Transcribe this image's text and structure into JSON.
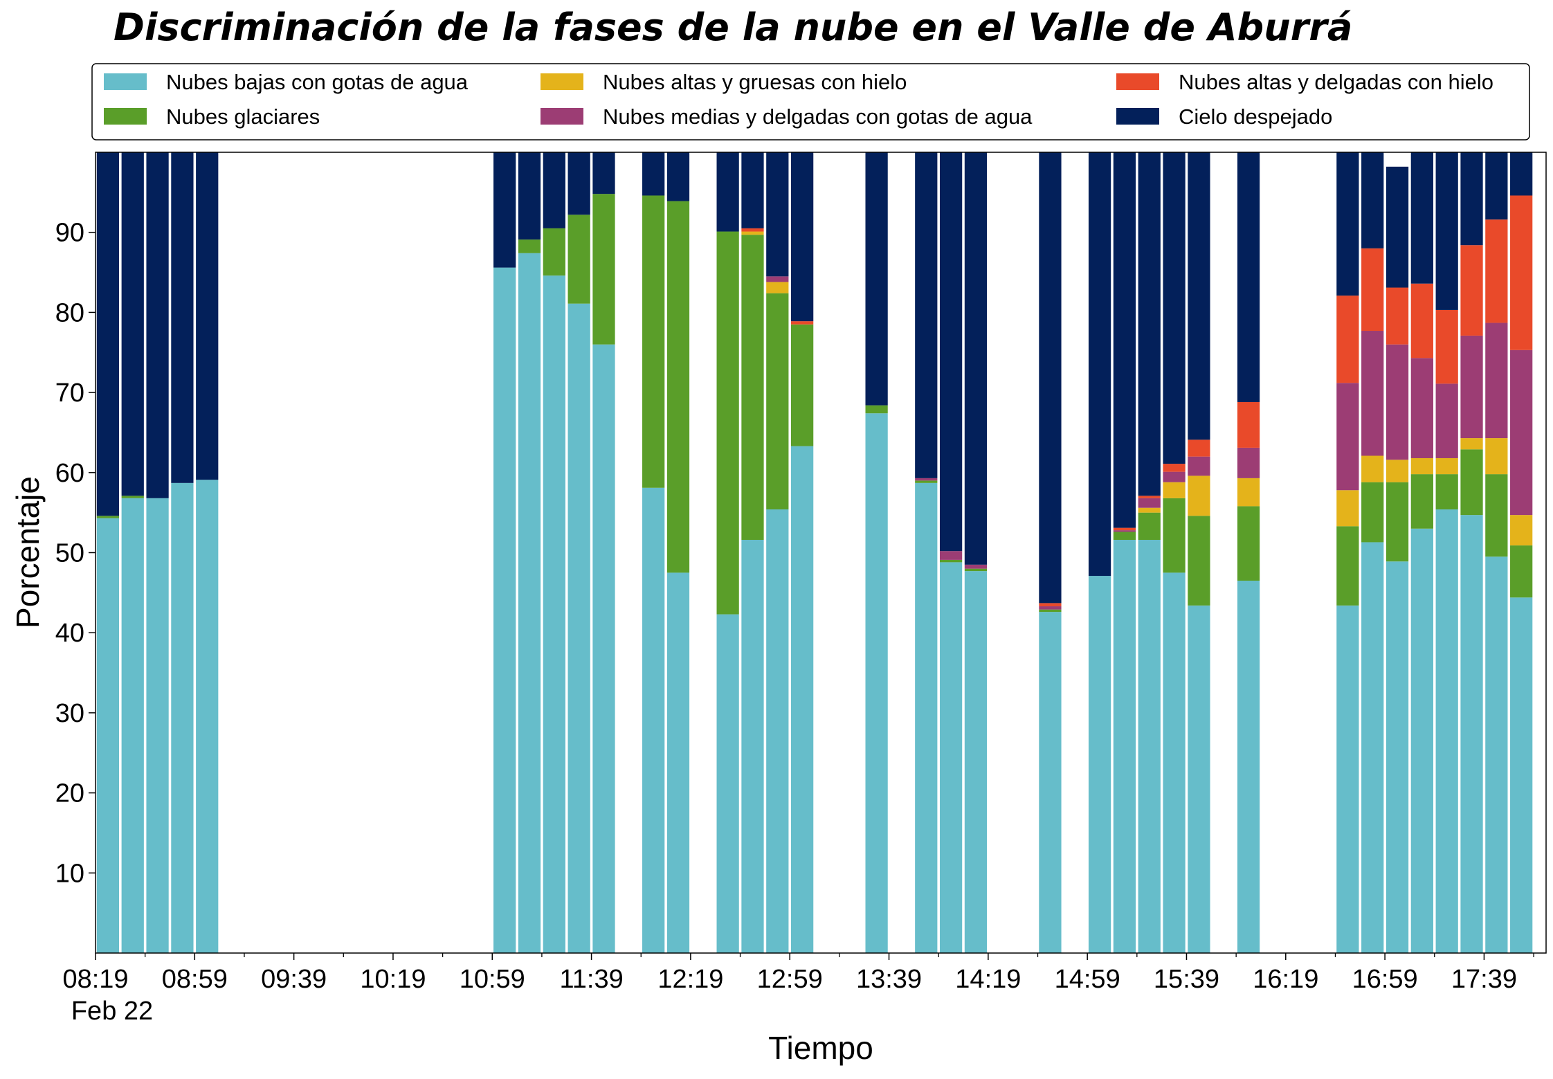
{
  "chart_data": {
    "type": "bar",
    "stacked": true,
    "title": "Discriminación de la fases de la nube en el Valle de Aburrá",
    "xlabel": "Tiempo",
    "ylabel": "Porcentaje",
    "x_date_label": "Feb 22",
    "ylim": [
      0,
      100
    ],
    "yticks": [
      10,
      20,
      30,
      40,
      50,
      60,
      70,
      80,
      90
    ],
    "x_start": "08:19",
    "x_end": "18:04",
    "xticks": [
      "08:19",
      "08:59",
      "09:39",
      "10:19",
      "10:59",
      "11:39",
      "12:19",
      "12:59",
      "13:39",
      "14:19",
      "14:59",
      "15:39",
      "16:19",
      "16:59",
      "17:39"
    ],
    "bar_width_min": 9,
    "legend_placement": "top, above plot, 3 columns",
    "grid": false,
    "times": [
      "08:24",
      "08:34",
      "08:44",
      "08:54",
      "09:04",
      "11:04",
      "11:14",
      "11:24",
      "11:34",
      "11:44",
      "12:04",
      "12:14",
      "12:34",
      "12:44",
      "12:54",
      "13:04",
      "13:34",
      "13:54",
      "14:04",
      "14:14",
      "14:44",
      "15:04",
      "15:14",
      "15:24",
      "15:34",
      "15:44",
      "16:04",
      "16:44",
      "16:54",
      "17:04",
      "17:14",
      "17:24",
      "17:34",
      "17:44",
      "17:54"
    ],
    "series": [
      {
        "name": "Nubes bajas con gotas de agua",
        "color": "#66bdca",
        "values": [
          54.3,
          56.8,
          56.8,
          58.7,
          59.1,
          85.6,
          87.4,
          84.6,
          81.1,
          76.0,
          58.1,
          47.5,
          42.3,
          51.6,
          55.4,
          63.3,
          67.4,
          58.7,
          48.8,
          47.7,
          42.6,
          47.1,
          51.6,
          51.6,
          47.5,
          43.4,
          46.5,
          43.4,
          51.3,
          48.9,
          53.0,
          55.4,
          54.7,
          49.5,
          44.4
        ]
      },
      {
        "name": "Nubes glaciares",
        "color": "#5a9e29",
        "values": [
          0.3,
          0.3,
          0.0,
          0.0,
          0.0,
          0.0,
          1.7,
          5.9,
          11.1,
          18.8,
          36.5,
          46.4,
          47.8,
          38.1,
          27.0,
          15.2,
          1.0,
          0.3,
          0.3,
          0.3,
          0.3,
          0.0,
          1.0,
          3.4,
          9.3,
          11.2,
          9.3,
          9.9,
          7.5,
          9.9,
          6.8,
          4.4,
          8.2,
          10.3,
          6.5
        ]
      },
      {
        "name": "Nubes altas y gruesas con hielo",
        "color": "#e4b31b",
        "values": [
          0,
          0,
          0,
          0,
          0,
          0,
          0,
          0,
          0,
          0,
          0,
          0,
          0,
          0.4,
          1.4,
          0,
          0,
          0,
          0,
          0,
          0,
          0,
          0,
          0.6,
          2.0,
          5.0,
          3.5,
          4.5,
          3.3,
          2.8,
          2.0,
          2.0,
          1.4,
          4.5,
          3.8
        ]
      },
      {
        "name": "Nubes medias y delgadas con gotas de agua",
        "color": "#9c3d74",
        "values": [
          0,
          0,
          0,
          0,
          0,
          0,
          0,
          0,
          0,
          0,
          0,
          0,
          0,
          0,
          0.7,
          0,
          0,
          0.3,
          1.1,
          0.5,
          0.4,
          0,
          0.2,
          1.2,
          1.3,
          2.4,
          3.8,
          13.4,
          15.6,
          14.4,
          12.5,
          9.3,
          12.8,
          14.4,
          20.6
        ]
      },
      {
        "name": "Nubes altas y delgadas con hielo",
        "color": "#e94a2a",
        "values": [
          0,
          0,
          0,
          0,
          0,
          0,
          0,
          0,
          0,
          0,
          0,
          0,
          0,
          0.4,
          0,
          0.4,
          0,
          0,
          0,
          0,
          0.4,
          0,
          0.3,
          0.3,
          1.0,
          2.1,
          5.7,
          10.9,
          10.3,
          7.1,
          9.3,
          9.2,
          11.3,
          12.9,
          19.3
        ]
      },
      {
        "name": "Cielo despejado",
        "color": "#03205a",
        "values": [
          45.4,
          42.9,
          43.2,
          41.3,
          40.9,
          14.4,
          10.9,
          9.5,
          7.8,
          5.2,
          5.4,
          6.1,
          9.9,
          9.5,
          15.5,
          21.1,
          31.6,
          40.7,
          49.8,
          51.5,
          56.3,
          52.9,
          46.9,
          42.9,
          38.9,
          35.9,
          31.2,
          17.9,
          12.0,
          15.1,
          16.4,
          19.7,
          11.6,
          8.4,
          5.4
        ]
      }
    ]
  }
}
